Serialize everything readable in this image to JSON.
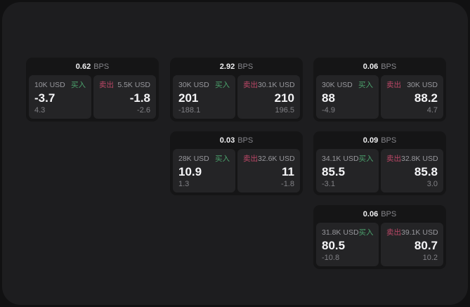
{
  "labels": {
    "bps_suffix": "BPS",
    "buy": "买入",
    "sell": "卖出"
  },
  "colors": {
    "buy_accent": "#4ba16c",
    "sell_accent": "#bc4767",
    "window_bg": "#1d1d1f",
    "card_bg": "#151516",
    "panel_bg": "#242426"
  },
  "cards": [
    {
      "bps": "0.62",
      "buy": {
        "amount": "10K USD",
        "value": "-3.7",
        "delta": "4.3"
      },
      "sell": {
        "amount": "5.5K USD",
        "value": "-1.8",
        "delta": "-2.6"
      }
    },
    {
      "bps": "2.92",
      "buy": {
        "amount": "30K USD",
        "value": "201",
        "delta": "-188.1"
      },
      "sell": {
        "amount": "30.1K USD",
        "value": "210",
        "delta": "196.5"
      }
    },
    {
      "bps": "0.06",
      "buy": {
        "amount": "30K USD",
        "value": "88",
        "delta": "-4.9"
      },
      "sell": {
        "amount": "30K USD",
        "value": "88.2",
        "delta": "4.7"
      }
    },
    {
      "bps": "0.03",
      "buy": {
        "amount": "28K USD",
        "value": "10.9",
        "delta": "1.3"
      },
      "sell": {
        "amount": "32.6K USD",
        "value": "11",
        "delta": "-1.8"
      }
    },
    {
      "bps": "0.09",
      "buy": {
        "amount": "34.1K USD",
        "value": "85.5",
        "delta": "-3.1"
      },
      "sell": {
        "amount": "32.8K USD",
        "value": "85.8",
        "delta": "3.0"
      }
    },
    {
      "bps": "0.06",
      "buy": {
        "amount": "31.8K USD",
        "value": "80.5",
        "delta": "-10.8"
      },
      "sell": {
        "amount": "39.1K USD",
        "value": "80.7",
        "delta": "10.2"
      }
    }
  ]
}
